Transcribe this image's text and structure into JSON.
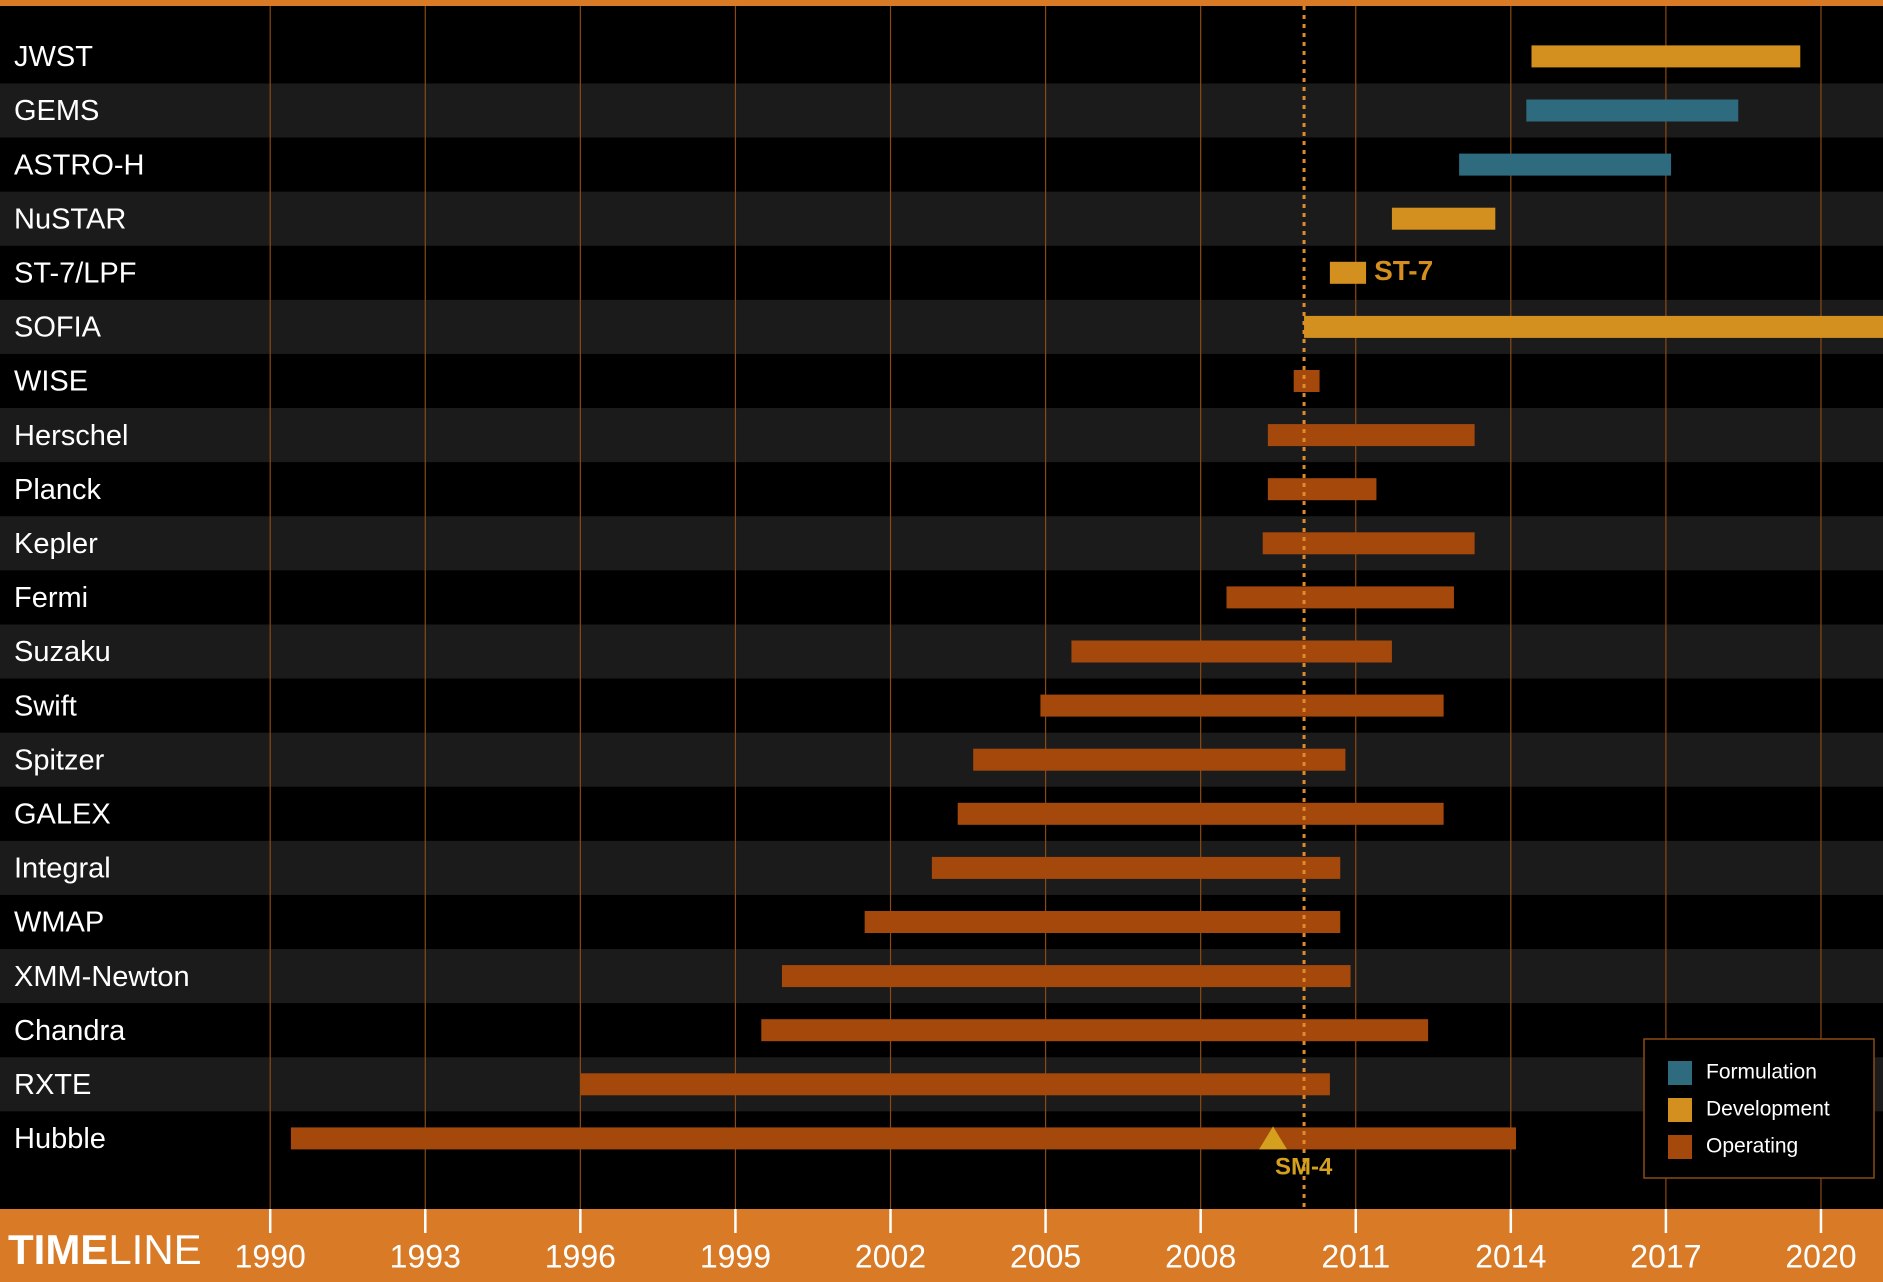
{
  "chart_data": {
    "type": "floating-bar",
    "orientation": "horizontal",
    "x_label": [
      "TIME",
      "LINE"
    ],
    "categories": [
      "JWST",
      "GEMS",
      "ASTRO-H",
      "NuSTAR",
      "ST-7/LPF",
      "SOFIA",
      "WISE",
      "Herschel",
      "Planck",
      "Kepler",
      "Fermi",
      "Suzaku",
      "Swift",
      "Spitzer",
      "GALEX",
      "Integral",
      "WMAP",
      "XMM-Newton",
      "Chandra",
      "RXTE",
      "Hubble"
    ],
    "series": [
      {
        "name": "Formulation",
        "color": "#2f6b7f",
        "values": [
          null,
          [
            2014.3,
            2018.4
          ],
          [
            2013.0,
            2017.1
          ],
          null,
          null,
          null,
          null,
          null,
          null,
          null,
          null,
          null,
          null,
          null,
          null,
          null,
          null,
          null,
          null,
          null,
          null
        ]
      },
      {
        "name": "Development",
        "color": "#d4901e",
        "values": [
          [
            2014.4,
            2019.6
          ],
          null,
          null,
          [
            2011.7,
            2013.7
          ],
          [
            2010.5,
            2011.2
          ],
          [
            2010.0,
            2021.2
          ],
          null,
          null,
          null,
          null,
          null,
          null,
          null,
          null,
          null,
          null,
          null,
          null,
          null,
          null,
          null
        ],
        "value_labels": [
          null,
          null,
          null,
          null,
          "ST-7",
          null,
          null,
          null,
          null,
          null,
          null,
          null,
          null,
          null,
          null,
          null,
          null,
          null,
          null,
          null,
          null
        ]
      },
      {
        "name": "Operating",
        "color": "#a4480c",
        "values": [
          null,
          null,
          null,
          null,
          null,
          null,
          [
            2009.8,
            2010.3
          ],
          [
            2009.3,
            2013.3
          ],
          [
            2009.3,
            2011.4
          ],
          [
            2009.2,
            2013.3
          ],
          [
            2008.5,
            2012.9
          ],
          [
            2005.5,
            2011.7
          ],
          [
            2004.9,
            2012.7
          ],
          [
            2003.6,
            2010.8
          ],
          [
            2003.3,
            2012.7
          ],
          [
            2002.8,
            2010.7
          ],
          [
            2001.5,
            2010.7
          ],
          [
            1999.9,
            2010.9
          ],
          [
            1999.5,
            2012.4
          ],
          [
            1996.0,
            2010.5
          ],
          [
            1990.4,
            2014.1
          ]
        ]
      }
    ],
    "markers": [
      {
        "label": "SM-4",
        "x": 2009.4,
        "category": 20
      }
    ],
    "today_line": 2010.0,
    "xlim": [
      1990,
      2021.2
    ],
    "xticks": [
      1990,
      1993,
      1996,
      1999,
      2002,
      2005,
      2008,
      2011,
      2014,
      2017,
      2020
    ],
    "grid": true
  }
}
